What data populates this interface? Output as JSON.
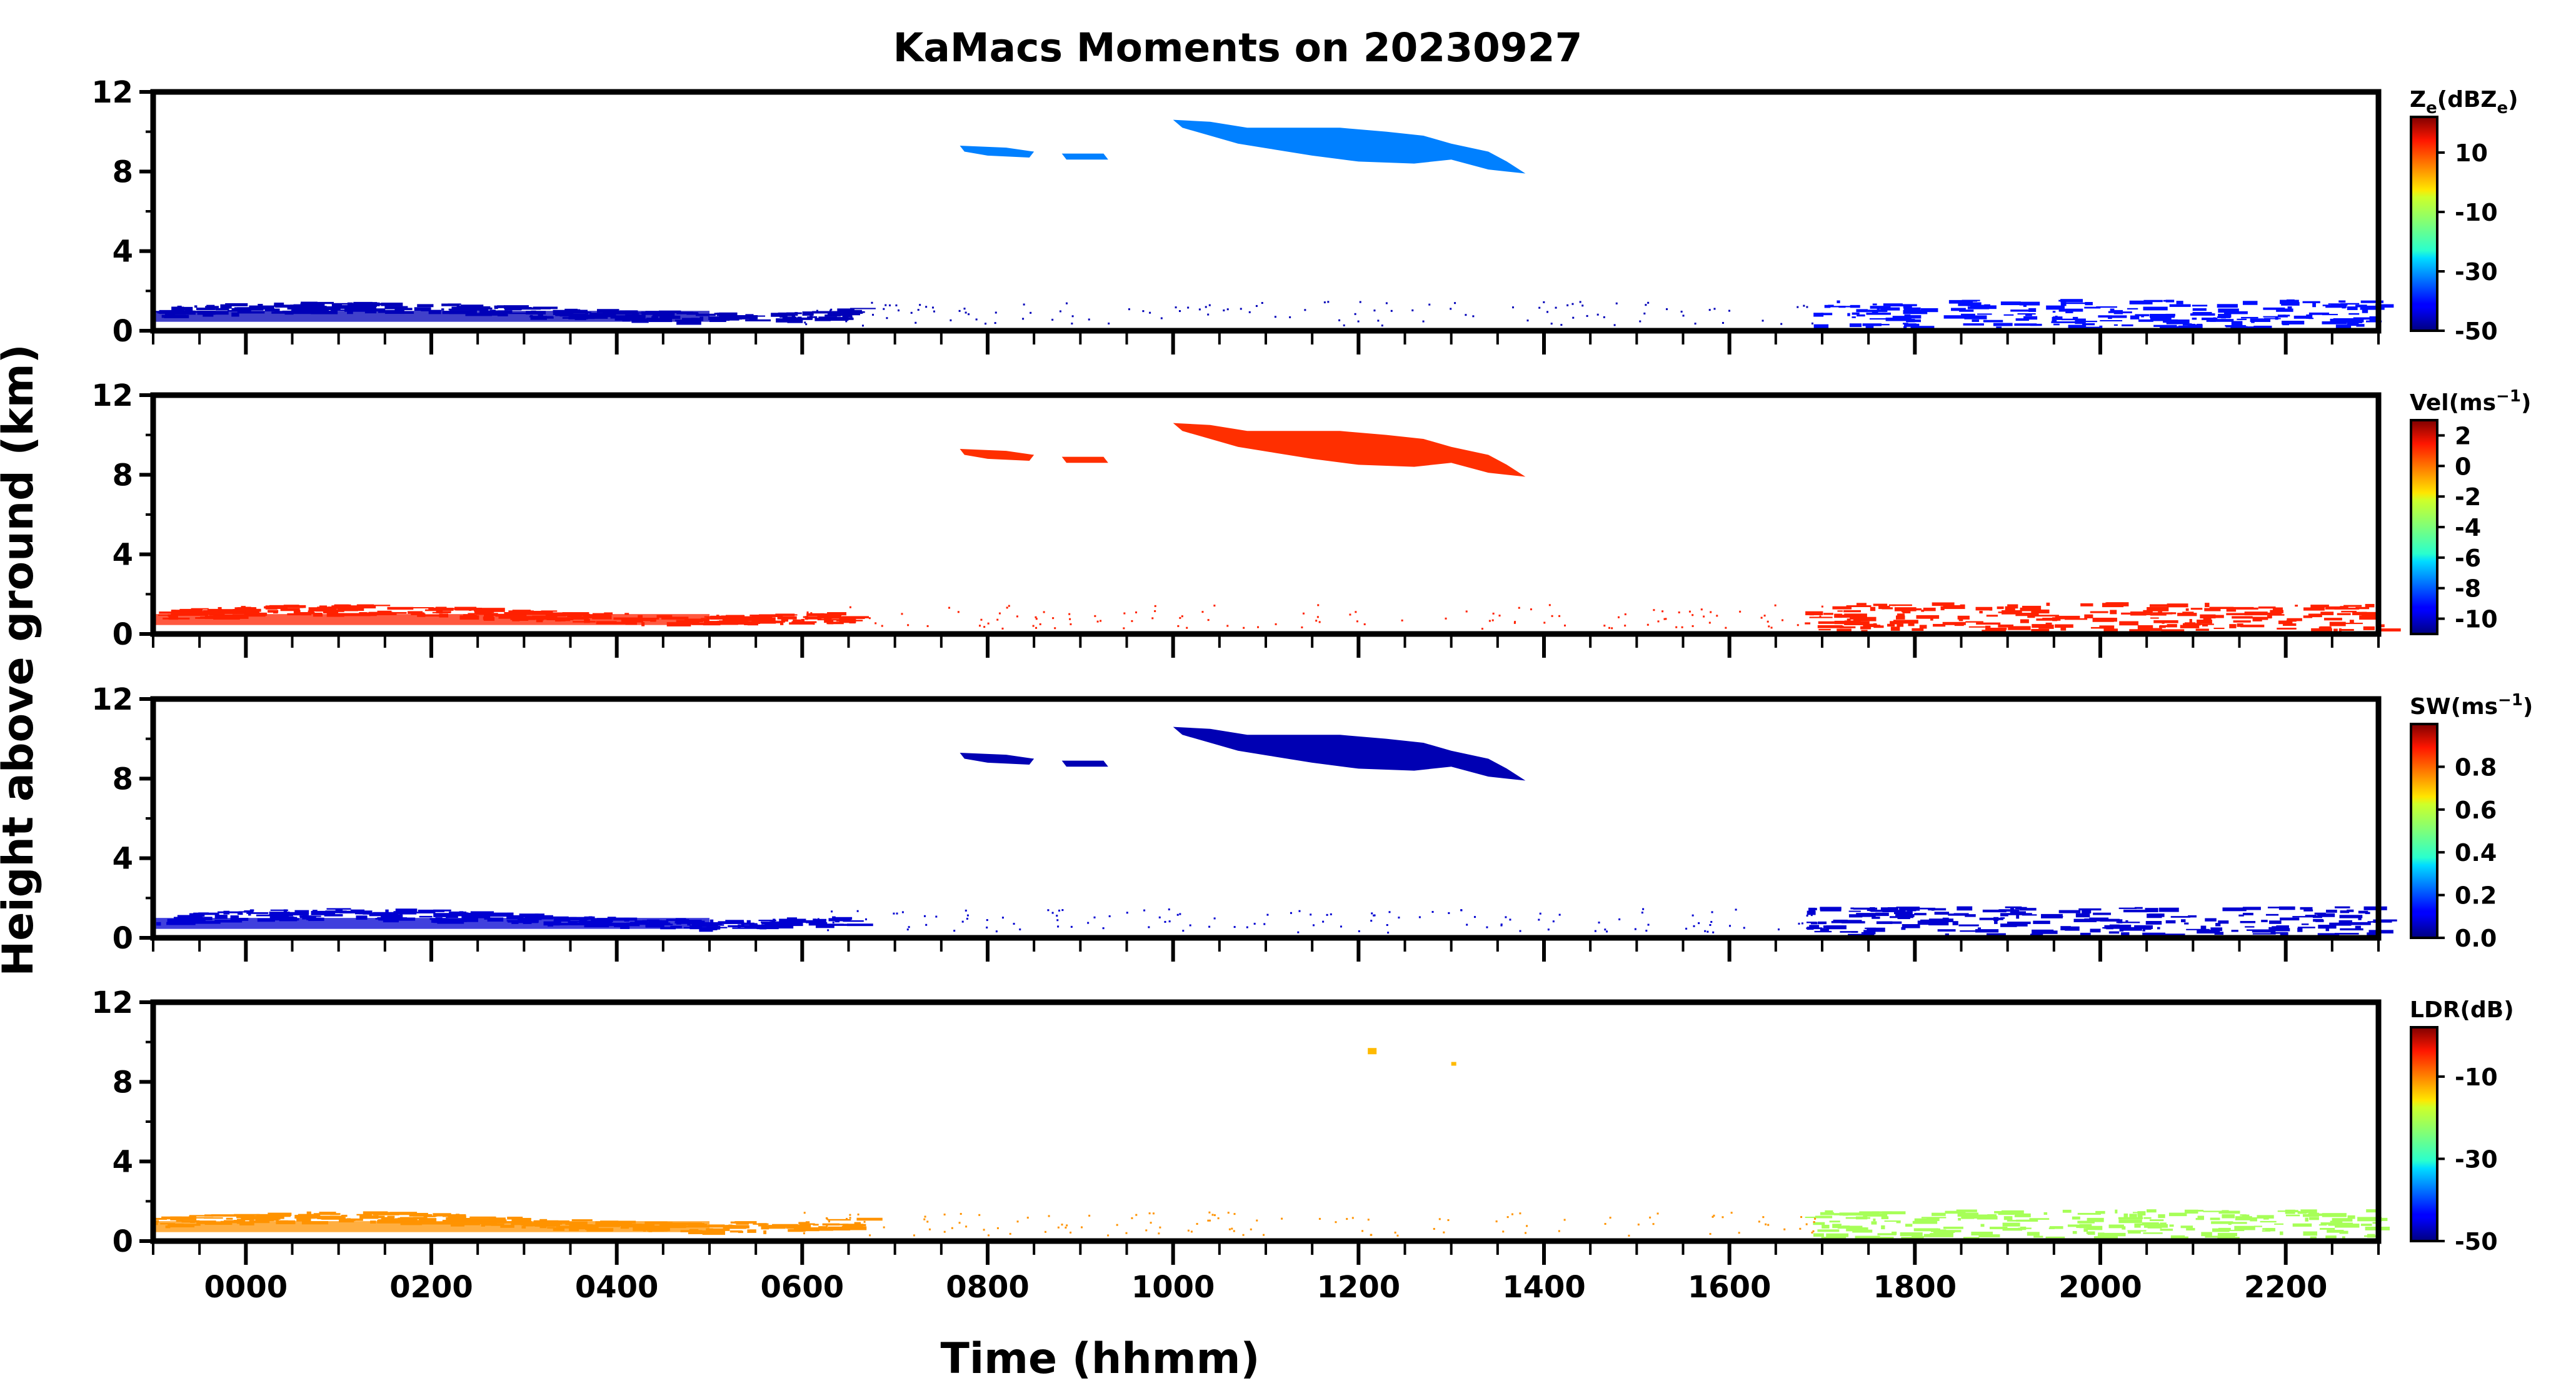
{
  "chart_data": {
    "type": "heatmap",
    "title": "KaMacs Moments on 20230927",
    "xlabel": "Time (hhmm)",
    "ylabel": "Height above ground (km)",
    "xlim": [
      -100,
      2300
    ],
    "xticks": [
      0,
      200,
      400,
      600,
      800,
      1000,
      1200,
      1400,
      1600,
      1800,
      2000,
      2200
    ],
    "xtick_labels": [
      "0000",
      "0200",
      "0400",
      "0600",
      "0800",
      "1000",
      "1200",
      "1400",
      "1600",
      "1800",
      "2000",
      "2200"
    ],
    "ylim": [
      0,
      12
    ],
    "yticks": [
      0,
      4,
      8,
      12
    ],
    "ytick_labels": [
      "0",
      "4",
      "8",
      "12"
    ],
    "colormap": "jet",
    "panels": [
      {
        "name": "reflectivity",
        "colorbar_label": "Z",
        "colorbar_sub": "e",
        "colorbar_units": "(dBZ",
        "colorbar_units_sub": "e",
        "colorbar_units_close": ")",
        "vmin": -50,
        "vmax": 22,
        "cbticks": [
          10,
          -10,
          -30,
          -50
        ],
        "cbtick_labels": [
          "10",
          "-10",
          "-30",
          "-50"
        ],
        "cloud_value": -32,
        "low_value": -46,
        "late_low_value": -40
      },
      {
        "name": "velocity",
        "colorbar_label": "Vel(ms",
        "colorbar_sup": "−1",
        "colorbar_close": ")",
        "vmin": -11,
        "vmax": 3,
        "cbticks": [
          2,
          0,
          -2,
          -4,
          -6,
          -8,
          -10
        ],
        "cbtick_labels": [
          "2",
          "0",
          "-2",
          "-4",
          "-6",
          "-8",
          "-10"
        ],
        "cloud_value": 0.6,
        "low_value": 0.8,
        "late_low_value": 0.8
      },
      {
        "name": "spectrum_width",
        "colorbar_label": "SW(ms",
        "colorbar_sup": "−1",
        "colorbar_close": ")",
        "vmin": 0,
        "vmax": 1,
        "cbticks": [
          0.8,
          0.6,
          0.4,
          0.2,
          0.0
        ],
        "cbtick_labels": [
          "0.8",
          "0.6",
          "0.4",
          "0.2",
          "0.0"
        ],
        "cloud_value": 0.05,
        "low_value": 0.08,
        "late_low_value": 0.08
      },
      {
        "name": "ldr",
        "colorbar_label": "LDR(dB)",
        "vmin": -50,
        "vmax": 2,
        "cbticks": [
          -10,
          -30,
          -50
        ],
        "cbtick_labels": [
          "-10",
          "-30",
          "-50"
        ],
        "cloud_value": -14,
        "low_value": -12,
        "late_low_value": -22
      }
    ],
    "features": {
      "upper_cloud_main": {
        "x_start": 1000,
        "x_end": 1380,
        "y_bottom": 7.9,
        "y_top": 10.7
      },
      "upper_cloud_left": {
        "x_start": 770,
        "x_end": 930,
        "y_bottom": 8.6,
        "y_top": 9.4
      },
      "boundary_layer_early": {
        "x_start": -100,
        "x_end": 660,
        "y_bottom": 0.3,
        "y_top": 1.6
      },
      "boundary_layer_late": {
        "x_start": 1680,
        "x_end": 2300,
        "y_bottom": 0.2,
        "y_top": 1.8
      }
    }
  }
}
